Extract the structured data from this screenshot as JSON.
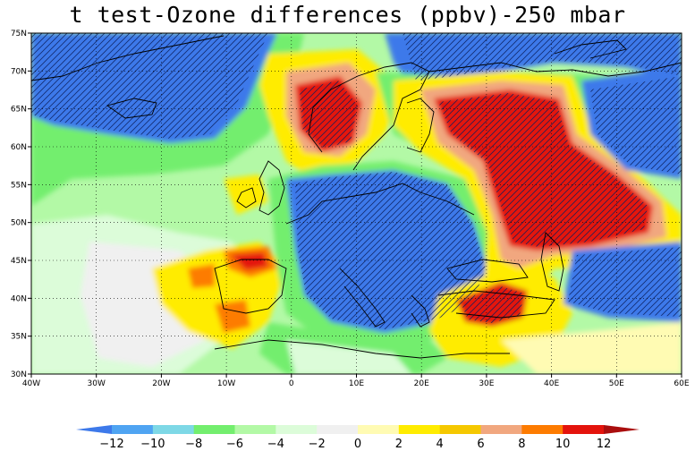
{
  "title": "t test-Ozone differences (ppbv)-250 mbar",
  "map": {
    "lon_range": [
      -40,
      60
    ],
    "lat_range": [
      30,
      75
    ],
    "lon_ticks": [
      {
        "value": -40,
        "label": "40W"
      },
      {
        "value": -30,
        "label": "30W"
      },
      {
        "value": -20,
        "label": "20W"
      },
      {
        "value": -10,
        "label": "10W"
      },
      {
        "value": 0,
        "label": "0"
      },
      {
        "value": 10,
        "label": "10E"
      },
      {
        "value": 20,
        "label": "20E"
      },
      {
        "value": 30,
        "label": "30E"
      },
      {
        "value": 40,
        "label": "40E"
      },
      {
        "value": 50,
        "label": "50E"
      },
      {
        "value": 60,
        "label": "60E"
      }
    ],
    "lat_ticks": [
      {
        "value": 30,
        "label": "30N"
      },
      {
        "value": 35,
        "label": "35N"
      },
      {
        "value": 40,
        "label": "40N"
      },
      {
        "value": 45,
        "label": "45N"
      },
      {
        "value": 50,
        "label": "50N"
      },
      {
        "value": 55,
        "label": "55N"
      },
      {
        "value": 60,
        "label": "60N"
      },
      {
        "value": 65,
        "label": "65N"
      },
      {
        "value": 70,
        "label": "70N"
      },
      {
        "value": 75,
        "label": "75N"
      }
    ],
    "grid": "dotted"
  },
  "colorbar": {
    "levels": [
      -12,
      -10,
      -8,
      -6,
      -4,
      -2,
      0,
      2,
      4,
      6,
      8,
      10,
      12
    ],
    "labels": [
      "−12",
      "−10",
      "−8",
      "−6",
      "−4",
      "−2",
      "0",
      "2",
      "4",
      "6",
      "8",
      "10",
      "12"
    ],
    "colors": [
      "#3d79ea",
      "#4fa4f2",
      "#7ed8e6",
      "#73ee6e",
      "#b3f9a6",
      "#dcfcd9",
      "#f0f0f0",
      "#fffbb3",
      "#ffec00",
      "#f5c800",
      "#f1a77f",
      "#fd7b00",
      "#e4130c",
      "#aa0e0e"
    ]
  }
}
